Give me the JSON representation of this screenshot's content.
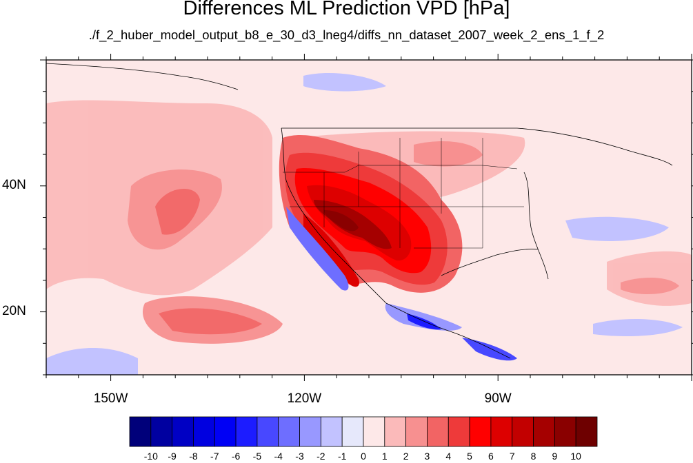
{
  "title": "Differences ML Prediction VPD [hPa]",
  "subtitle": "./f_2_huber_model_output_b8_e_30_d3_lneg4/diffs_nn_dataset_2007_week_2_ens_1_f_2",
  "map": {
    "projection": "cylindrical equidistant",
    "lon_range": [
      -160,
      -60
    ],
    "lat_range": [
      10,
      60
    ],
    "lat_ticks": [
      {
        "value": 40,
        "label": "40N"
      },
      {
        "value": 20,
        "label": "20N"
      }
    ],
    "lon_ticks": [
      {
        "value": -150,
        "label": "150W"
      },
      {
        "value": -120,
        "label": "120W"
      },
      {
        "value": -90,
        "label": "90W"
      }
    ]
  },
  "colorbar": {
    "labels": [
      "-10",
      "-9",
      "-8",
      "-7",
      "-6",
      "-5",
      "-4",
      "-3",
      "-2",
      "-1",
      "0",
      "1",
      "2",
      "3",
      "4",
      "5",
      "6",
      "7",
      "8",
      "9",
      "10"
    ],
    "colors": [
      "#00007a",
      "#0000a0",
      "#0000c4",
      "#0000e0",
      "#0000f5",
      "#1c1cff",
      "#4848ff",
      "#6e6eff",
      "#9898ff",
      "#c2c2ff",
      "#e6e8fb",
      "#fde8e8",
      "#fbbaba",
      "#f79090",
      "#f26464",
      "#ee3a3a",
      "#ff0000",
      "#dd0000",
      "#c20000",
      "#a50000",
      "#8a0000",
      "#6e0000"
    ]
  },
  "colors": {
    "background": "#fde8e8",
    "coast": "#000000"
  }
}
